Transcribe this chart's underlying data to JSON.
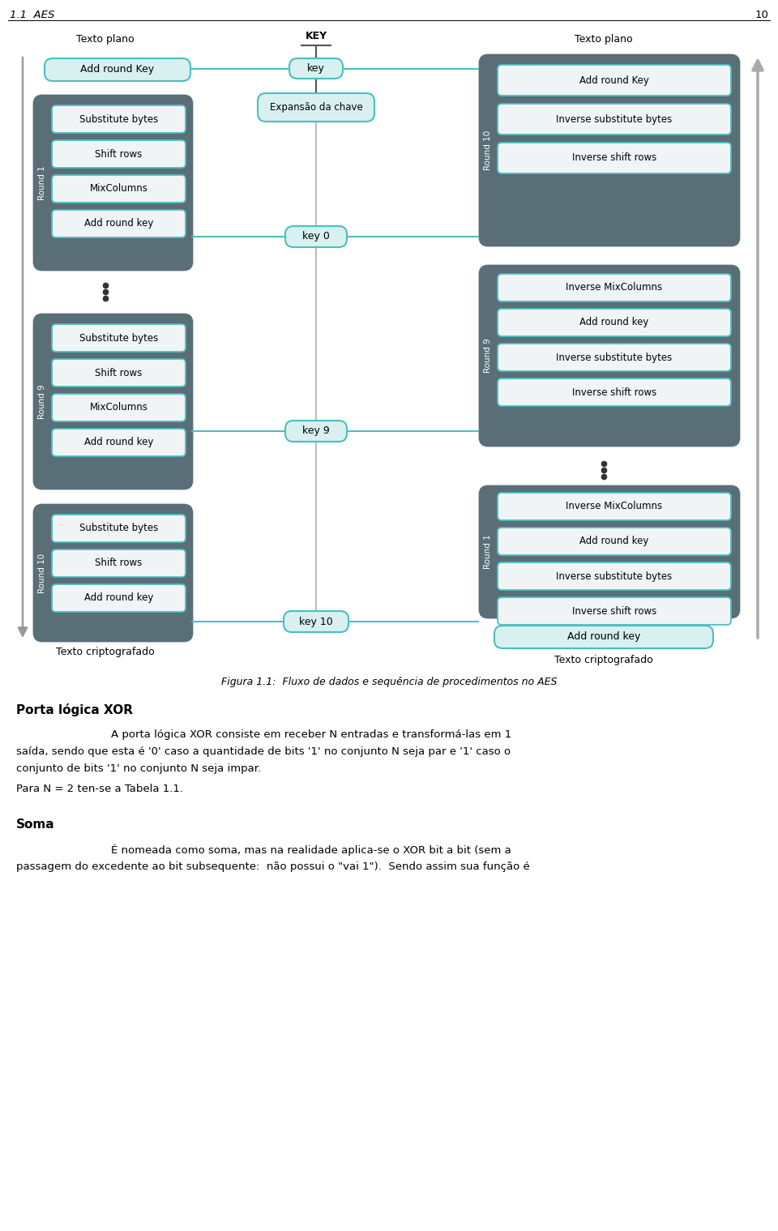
{
  "title_section": "1.1  AES",
  "page_num": "10",
  "fig_caption": "Figura 1.1:  Fluxo de dados e sequência de procedimentos no AES",
  "section_heading": "Porta lógica XOR",
  "para1_line1": "    A porta lógica XOR consiste em receber N entradas e transformá-las em 1",
  "para1_line2": "saída, sendo que esta é '0' caso a quantidade de bits '1' no conjunto N seja par e '1' caso o",
  "para1_line3": "conjunto de bits '1' no conjunto N seja impar.",
  "para2": "Para N = 2 ten-se a Tabela 1.1.",
  "section_heading2": "Soma",
  "para3_line1": "    É nomeada como soma, mas na realidade aplica-se o XOR bit a bit (sem a",
  "para3_line2": "passagem do excedente ao bit subsequente:  não possui o \"vai 1\").  Sendo assim sua função é",
  "dark_bg": "#5a6e78",
  "box_fill": "#f0f4f4",
  "box_stroke": "#4bbfbf",
  "key_fill": "#d8f0f0",
  "outer_stroke": "#4bbfbf",
  "line_color": "#4bbfbf",
  "text_color": "#000000"
}
